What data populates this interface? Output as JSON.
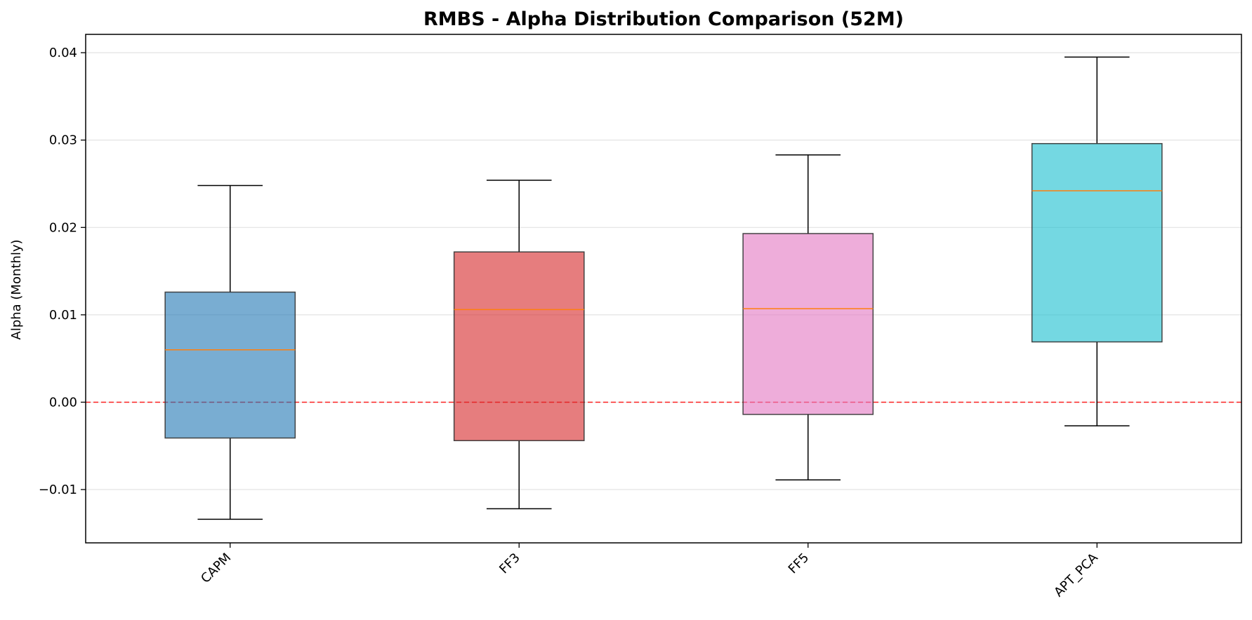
{
  "chart_data": {
    "type": "boxplot",
    "title": "RMBS - Alpha Distribution Comparison (52M)",
    "ylabel": "Alpha (Monthly)",
    "xlabel": "",
    "ylim": [
      -0.0161,
      0.0421
    ],
    "yticks": [
      -0.01,
      0.0,
      0.01,
      0.02,
      0.03,
      0.04
    ],
    "ytick_labels": [
      "−0.01",
      "0.00",
      "0.01",
      "0.02",
      "0.03",
      "0.04"
    ],
    "grid": "horizontal",
    "reference_line": {
      "y": 0.0,
      "color": "#ff0000",
      "style": "dashed"
    },
    "median_color": "#ff7f0e",
    "boxes": [
      {
        "label": "CAPM",
        "color": "#1f77b4",
        "whisker_low": -0.0134,
        "q1": -0.0041,
        "median": 0.006,
        "q3": 0.0126,
        "whisker_high": 0.0248
      },
      {
        "label": "FF3",
        "color": "#d62728",
        "whisker_low": -0.0122,
        "q1": -0.0044,
        "median": 0.0106,
        "q3": 0.0172,
        "whisker_high": 0.0254
      },
      {
        "label": "FF5",
        "color": "#e377c2",
        "whisker_low": -0.0089,
        "q1": -0.0014,
        "median": 0.0107,
        "q3": 0.0193,
        "whisker_high": 0.0283
      },
      {
        "label": "APT_PCA",
        "color": "#17becf",
        "whisker_low": -0.0027,
        "q1": 0.0069,
        "median": 0.0242,
        "q3": 0.0296,
        "whisker_high": 0.0395
      }
    ]
  }
}
